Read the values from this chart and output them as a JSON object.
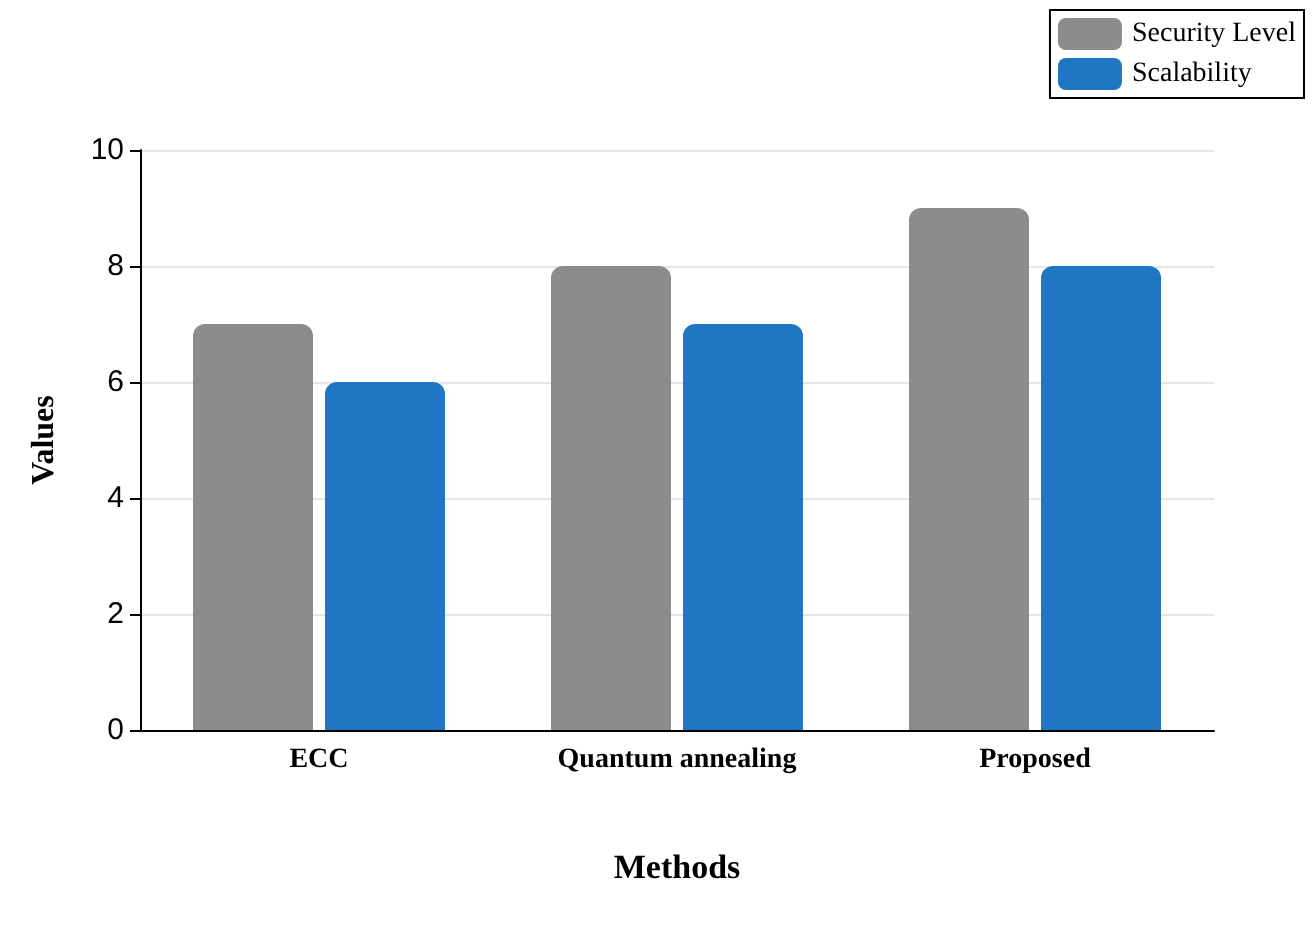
{
  "chart_data": {
    "type": "bar",
    "xlabel": "Methods",
    "ylabel": "Values",
    "categories": [
      "ECC",
      "Quantum annealing",
      "Proposed"
    ],
    "series": [
      {
        "name": "Security Level",
        "color": "#8c8c8c",
        "values": [
          7,
          8,
          9
        ]
      },
      {
        "name": "Scalability",
        "color": "#1f77c4",
        "values": [
          6,
          7,
          8
        ]
      }
    ],
    "ylim": [
      0,
      10
    ],
    "yticks": [
      0,
      2,
      4,
      6,
      8,
      10
    ],
    "grid": "y",
    "legend": "top right"
  }
}
